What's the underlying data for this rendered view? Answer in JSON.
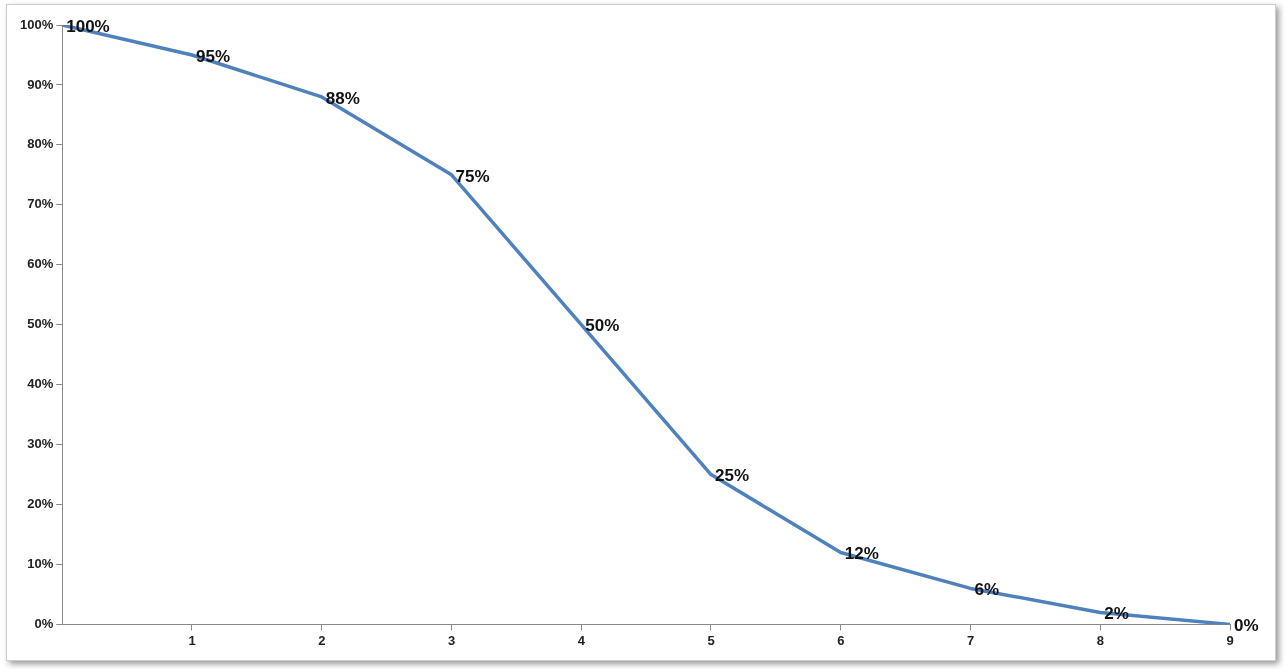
{
  "chart_data": {
    "type": "line",
    "x": [
      0,
      1,
      2,
      3,
      4,
      5,
      6,
      7,
      8,
      9
    ],
    "series": [
      {
        "color": "#4f81bd",
        "values": [
          100,
          95,
          88,
          75,
          50,
          25,
          12,
          6,
          2,
          0
        ],
        "value_labels": [
          "100%",
          "95%",
          "88%",
          "75%",
          "50%",
          "25%",
          "12%",
          "6%",
          "2%",
          "0%"
        ]
      }
    ],
    "xlim": [
      0,
      9
    ],
    "xticks": [
      1,
      2,
      3,
      4,
      5,
      6,
      7,
      8,
      9
    ],
    "ylim": [
      0,
      100
    ],
    "yticks": [
      {
        "value": 0,
        "label": "0%"
      },
      {
        "value": 10,
        "label": "10%"
      },
      {
        "value": 20,
        "label": "20%"
      },
      {
        "value": 30,
        "label": "30%"
      },
      {
        "value": 40,
        "label": "40%"
      },
      {
        "value": 50,
        "label": "50%"
      },
      {
        "value": 60,
        "label": "60%"
      },
      {
        "value": 70,
        "label": "70%"
      },
      {
        "value": 80,
        "label": "80%"
      },
      {
        "value": 90,
        "label": "90%"
      },
      {
        "value": 100,
        "label": "100%"
      }
    ],
    "grid": false,
    "legend": false,
    "marker": "none",
    "line_style": "solid"
  }
}
